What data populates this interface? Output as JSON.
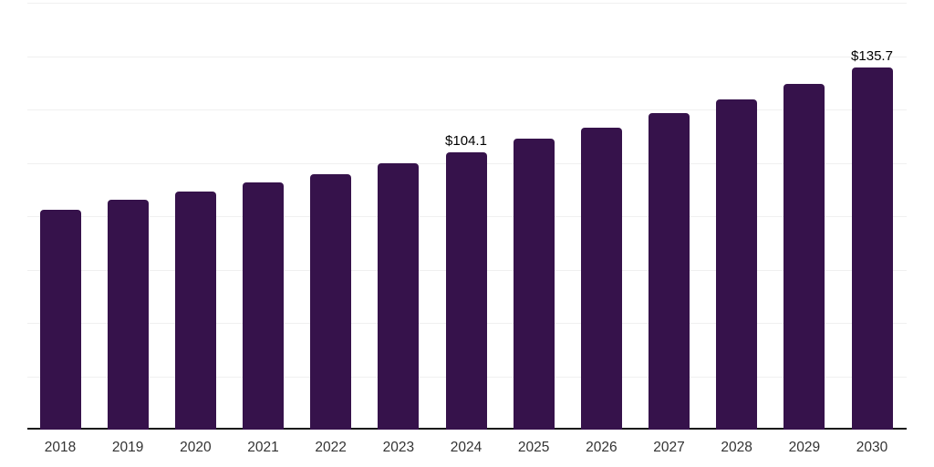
{
  "chart_data": {
    "type": "bar",
    "title": "",
    "xlabel": "",
    "ylabel": "",
    "categories": [
      "2018",
      "2019",
      "2020",
      "2021",
      "2022",
      "2023",
      "2024",
      "2025",
      "2026",
      "2027",
      "2028",
      "2029",
      "2030"
    ],
    "values": [
      82.5,
      86.1,
      89.3,
      92.5,
      95.9,
      99.9,
      104.1,
      108.9,
      113.3,
      118.5,
      123.6,
      129.6,
      135.7
    ],
    "data_labels": {
      "2024": "$104.1",
      "2030": "$135.7"
    },
    "ylim": [
      0,
      160
    ],
    "gridline_step": 20,
    "grid": true,
    "legend": "none",
    "colors": {
      "bar": "#36124B",
      "gridline": "#F0F0F0",
      "axis_line": "#1A1A1A",
      "tick_label": "#333333",
      "data_label": "#000000",
      "background": "#FFFFFF"
    }
  }
}
